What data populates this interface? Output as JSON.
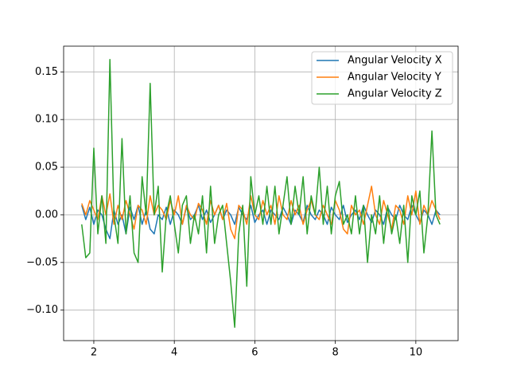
{
  "chart_data": {
    "type": "line",
    "x": [
      1.7,
      1.8,
      1.9,
      2.0,
      2.1,
      2.2,
      2.3,
      2.4,
      2.5,
      2.6,
      2.7,
      2.8,
      2.9,
      3.0,
      3.1,
      3.2,
      3.3,
      3.4,
      3.5,
      3.6,
      3.7,
      3.8,
      3.9,
      4.0,
      4.1,
      4.2,
      4.3,
      4.4,
      4.5,
      4.6,
      4.7,
      4.8,
      4.9,
      5.0,
      5.1,
      5.2,
      5.3,
      5.4,
      5.5,
      5.6,
      5.7,
      5.8,
      5.9,
      6.0,
      6.1,
      6.2,
      6.3,
      6.4,
      6.5,
      6.6,
      6.7,
      6.8,
      6.9,
      7.0,
      7.1,
      7.2,
      7.3,
      7.4,
      7.5,
      7.6,
      7.7,
      7.8,
      7.9,
      8.0,
      8.1,
      8.2,
      8.3,
      8.4,
      8.5,
      8.6,
      8.7,
      8.8,
      8.9,
      9.0,
      9.1,
      9.2,
      9.3,
      9.4,
      9.5,
      9.6,
      9.7,
      9.8,
      9.9,
      10.0,
      10.1,
      10.2,
      10.3,
      10.4,
      10.5,
      10.6
    ],
    "series": [
      {
        "name": "Angular Velocity X",
        "color": "#1f77b4",
        "values": [
          0.01,
          -0.005,
          0.008,
          -0.01,
          0.005,
          0.0,
          -0.015,
          -0.025,
          0.005,
          -0.01,
          0.0,
          -0.02,
          0.008,
          -0.005,
          0.01,
          -0.01,
          0.005,
          -0.015,
          -0.02,
          0.0,
          -0.005,
          0.008,
          -0.01,
          0.005,
          0.0,
          -0.01,
          0.008,
          -0.005,
          0.0,
          0.01,
          -0.005,
          0.005,
          -0.008,
          0.0,
          0.01,
          -0.005,
          0.005,
          0.0,
          -0.01,
          0.008,
          0.0,
          -0.005,
          0.01,
          -0.008,
          0.0,
          0.005,
          -0.01,
          0.005,
          0.0,
          -0.005,
          0.008,
          0.0,
          -0.01,
          0.005,
          0.0,
          -0.008,
          0.01,
          0.0,
          -0.005,
          0.005,
          0.0,
          -0.01,
          0.008,
          0.0,
          -0.005,
          0.01,
          -0.008,
          0.0,
          0.005,
          -0.005,
          0.01,
          0.0,
          -0.008,
          0.005,
          0.0,
          -0.01,
          0.008,
          0.0,
          -0.005,
          0.01,
          0.0,
          -0.005,
          0.01,
          0.0,
          -0.008,
          0.005,
          0.0,
          -0.01,
          0.005,
          0.0
        ]
      },
      {
        "name": "Angular Velocity Y",
        "color": "#ff7f0e",
        "values": [
          0.012,
          0.0,
          0.015,
          0.005,
          -0.005,
          0.02,
          0.0,
          0.022,
          -0.01,
          0.01,
          -0.005,
          0.015,
          0.0,
          -0.015,
          0.01,
          0.005,
          -0.01,
          0.02,
          0.0,
          0.01,
          0.005,
          -0.005,
          0.015,
          0.0,
          0.02,
          -0.01,
          0.01,
          0.0,
          -0.005,
          0.012,
          0.005,
          -0.01,
          0.015,
          0.0,
          0.01,
          -0.005,
          0.012,
          -0.015,
          -0.025,
          0.01,
          0.005,
          -0.01,
          0.02,
          0.0,
          -0.005,
          0.015,
          0.0,
          0.01,
          -0.01,
          0.02,
          0.0,
          -0.005,
          0.015,
          0.0,
          0.01,
          -0.01,
          0.005,
          0.015,
          0.0,
          -0.005,
          0.01,
          0.0,
          -0.01,
          0.015,
          0.005,
          -0.015,
          -0.02,
          0.01,
          0.0,
          0.005,
          -0.01,
          0.01,
          0.03,
          0.0,
          -0.01,
          0.015,
          0.0,
          -0.015,
          0.01,
          0.005,
          -0.01,
          0.02,
          0.0,
          0.025,
          -0.01,
          0.01,
          0.0,
          0.015,
          0.005,
          -0.005
        ]
      },
      {
        "name": "Angular Velocity Z",
        "color": "#2ca02c",
        "values": [
          -0.01,
          -0.045,
          -0.04,
          0.07,
          -0.02,
          0.02,
          -0.03,
          0.163,
          0.0,
          -0.03,
          0.08,
          -0.02,
          0.02,
          -0.04,
          -0.05,
          0.04,
          0.0,
          0.138,
          0.0,
          0.03,
          -0.06,
          0.0,
          0.02,
          -0.01,
          -0.04,
          0.01,
          0.02,
          -0.03,
          0.0,
          -0.02,
          0.02,
          -0.04,
          0.03,
          -0.03,
          0.0,
          0.01,
          -0.03,
          -0.07,
          -0.118,
          -0.02,
          0.01,
          -0.075,
          0.04,
          0.0,
          0.02,
          -0.01,
          0.03,
          -0.01,
          0.03,
          -0.02,
          0.01,
          0.04,
          -0.01,
          0.03,
          0.0,
          0.04,
          -0.02,
          0.02,
          0.0,
          0.05,
          -0.01,
          0.03,
          -0.02,
          0.02,
          0.035,
          -0.01,
          0.0,
          -0.02,
          0.02,
          -0.02,
          0.01,
          -0.05,
          0.0,
          -0.02,
          0.02,
          -0.03,
          0.01,
          -0.02,
          0.0,
          -0.03,
          0.01,
          -0.05,
          0.02,
          0.0,
          0.025,
          -0.04,
          0.0,
          0.088,
          0.0,
          -0.01
        ]
      }
    ],
    "xlim": [
      1.25,
      11.05
    ],
    "xticks": [
      2,
      4,
      6,
      8,
      10
    ],
    "ylim": [
      -0.132,
      0.177
    ],
    "yticks": [
      {
        "value": -0.1,
        "label": "−0.10"
      },
      {
        "value": -0.05,
        "label": "−0.05"
      },
      {
        "value": 0,
        "label": "0.00"
      },
      {
        "value": 0.05,
        "label": "0.05"
      },
      {
        "value": 0.1,
        "label": "0.10"
      },
      {
        "value": 0.15,
        "label": "0.15"
      }
    ],
    "grid": true,
    "legend": "upper right"
  }
}
